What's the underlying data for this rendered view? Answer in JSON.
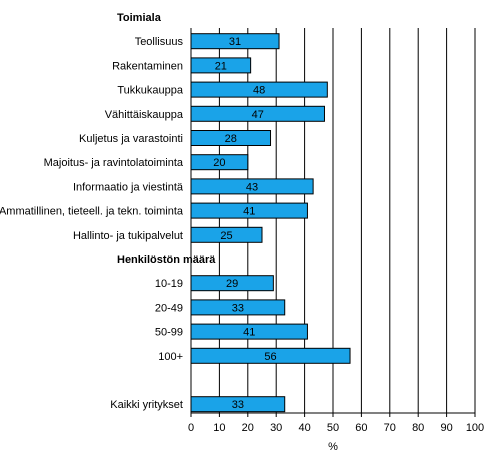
{
  "chart_data": {
    "type": "bar",
    "orientation": "horizontal",
    "xlabel": "%",
    "xlim": [
      0,
      100
    ],
    "xticks": [
      0,
      10,
      20,
      30,
      40,
      50,
      60,
      70,
      80,
      90,
      100
    ],
    "grid": "vertical",
    "bar_color": "#1aa3e8",
    "bar_edge_color": "#000000",
    "groups": [
      {
        "heading": "Toimiala",
        "categories": [
          "Teollisuus",
          "Rakentaminen",
          "Tukkukauppa",
          "Vähittäiskauppa",
          "Kuljetus ja varastointi",
          "Majoitus- ja ravintolatoiminta",
          "Informaatio ja viestintä",
          "Ammatillinen, tieteell. ja tekn. toiminta",
          "Hallinto- ja tukipalvelut"
        ],
        "values": [
          31,
          21,
          48,
          47,
          28,
          20,
          43,
          41,
          25
        ]
      },
      {
        "heading": "Henkilöstön määrä",
        "categories": [
          "10-19",
          "20-49",
          "50-99",
          "100+"
        ],
        "values": [
          29,
          33,
          41,
          56
        ]
      },
      {
        "heading": "",
        "categories": [
          "Kaikki yritykset"
        ],
        "values": [
          33
        ]
      }
    ]
  }
}
